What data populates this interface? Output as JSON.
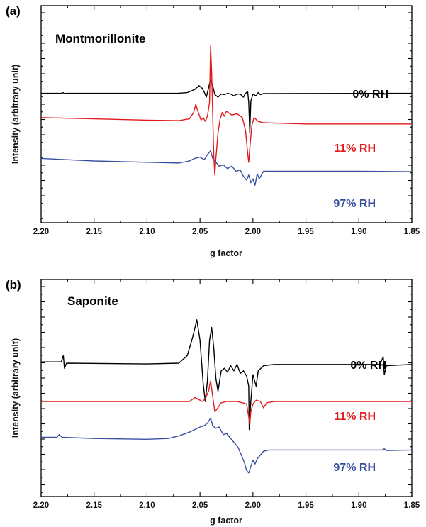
{
  "chart_data": [
    {
      "type": "line",
      "panel_label": "(a)",
      "title": "Montmorillonite",
      "xlabel": "g factor",
      "ylabel": "Intensity (arbitrary unit)",
      "xlim": [
        2.2,
        1.85
      ],
      "x_reversed": true,
      "xticks": [
        "2.20",
        "2.15",
        "2.10",
        "2.05",
        "2.00",
        "1.95",
        "1.90",
        "1.85"
      ],
      "y_tick_labels": false,
      "grid": false,
      "series": [
        {
          "name": "0% RH",
          "color": "#000000",
          "baseline": 0.65,
          "points": [
            [
              2.2,
              0.65
            ],
            [
              2.181,
              0.65
            ],
            [
              2.179,
              0.675
            ],
            [
              2.178,
              0.63
            ],
            [
              2.176,
              0.65
            ],
            [
              2.07,
              0.655
            ],
            [
              2.062,
              0.68
            ],
            [
              2.055,
              0.8
            ],
            [
              2.051,
              0.95
            ],
            [
              2.048,
              0.85
            ],
            [
              2.046,
              0.7
            ],
            [
              2.044,
              0.5
            ],
            [
              2.042,
              0.85
            ],
            [
              2.04,
              1.2
            ],
            [
              2.038,
              0.95
            ],
            [
              2.036,
              0.6
            ],
            [
              2.033,
              0.5
            ],
            [
              2.03,
              0.62
            ],
            [
              2.027,
              0.6
            ],
            [
              2.024,
              0.65
            ],
            [
              2.021,
              0.62
            ],
            [
              2.018,
              0.55
            ],
            [
              2.015,
              0.62
            ],
            [
              2.012,
              0.62
            ],
            [
              2.009,
              0.5
            ],
            [
              2.007,
              0.65
            ],
            [
              2.005,
              0.72
            ],
            [
              2.004,
              0.3
            ],
            [
              2.003,
              -0.9
            ],
            [
              2.002,
              0.35
            ],
            [
              2.0,
              0.62
            ],
            [
              1.997,
              0.55
            ],
            [
              1.995,
              0.68
            ],
            [
              1.993,
              0.6
            ],
            [
              1.99,
              0.64
            ],
            [
              1.88,
              0.65
            ],
            [
              1.877,
              0.67
            ],
            [
              1.876,
              0.62
            ],
            [
              1.874,
              0.65
            ],
            [
              1.85,
              0.65
            ]
          ]
        },
        {
          "name": "11% RH",
          "color": "#e31a1c",
          "baseline": -0.55,
          "points": [
            [
              2.2,
              -0.3
            ],
            [
              2.15,
              -0.35
            ],
            [
              2.1,
              -0.4
            ],
            [
              2.07,
              -0.42
            ],
            [
              2.06,
              -0.35
            ],
            [
              2.056,
              -0.1
            ],
            [
              2.054,
              0.22
            ],
            [
              2.052,
              -0.05
            ],
            [
              2.049,
              -0.4
            ],
            [
              2.047,
              -0.3
            ],
            [
              2.045,
              -0.45
            ],
            [
              2.043,
              -0.25
            ],
            [
              2.041,
              0.3
            ],
            [
              2.04,
              2.5
            ],
            [
              2.039,
              1.5
            ],
            [
              2.038,
              -0.2
            ],
            [
              2.037,
              -1.8
            ],
            [
              2.036,
              -2.55
            ],
            [
              2.035,
              -1.9
            ],
            [
              2.033,
              -0.9
            ],
            [
              2.031,
              -0.35
            ],
            [
              2.029,
              -0.1
            ],
            [
              2.027,
              -0.25
            ],
            [
              2.025,
              -0.05
            ],
            [
              2.02,
              -0.2
            ],
            [
              2.015,
              -0.15
            ],
            [
              2.01,
              -0.3
            ],
            [
              2.007,
              -0.8
            ],
            [
              2.005,
              -1.7
            ],
            [
              2.004,
              -2.05
            ],
            [
              2.003,
              -1.5
            ],
            [
              2.001,
              -0.6
            ],
            [
              1.999,
              -0.3
            ],
            [
              1.995,
              -0.45
            ],
            [
              1.99,
              -0.5
            ],
            [
              1.95,
              -0.55
            ],
            [
              1.9,
              -0.55
            ],
            [
              1.85,
              -0.55
            ]
          ]
        },
        {
          "name": "97% RH",
          "color": "#3b4fa0",
          "baseline": -2.4,
          "points": [
            [
              2.2,
              -1.9
            ],
            [
              2.15,
              -2.0
            ],
            [
              2.1,
              -2.05
            ],
            [
              2.07,
              -2.08
            ],
            [
              2.06,
              -2.0
            ],
            [
              2.055,
              -1.9
            ],
            [
              2.05,
              -1.85
            ],
            [
              2.046,
              -1.95
            ],
            [
              2.043,
              -1.75
            ],
            [
              2.04,
              -1.6
            ],
            [
              2.038,
              -1.9
            ],
            [
              2.035,
              -2.05
            ],
            [
              2.032,
              -2.2
            ],
            [
              2.028,
              -2.15
            ],
            [
              2.024,
              -2.3
            ],
            [
              2.02,
              -2.2
            ],
            [
              2.016,
              -2.4
            ],
            [
              2.012,
              -2.35
            ],
            [
              2.009,
              -2.6
            ],
            [
              2.006,
              -2.75
            ],
            [
              2.004,
              -2.55
            ],
            [
              2.002,
              -2.85
            ],
            [
              2.0,
              -2.7
            ],
            [
              1.998,
              -2.95
            ],
            [
              1.996,
              -2.5
            ],
            [
              1.994,
              -2.7
            ],
            [
              1.99,
              -2.4
            ],
            [
              1.95,
              -2.4
            ],
            [
              1.9,
              -2.4
            ],
            [
              1.85,
              -2.42
            ]
          ]
        }
      ]
    },
    {
      "type": "line",
      "panel_label": "(b)",
      "title": "Saponite",
      "xlabel": "g factor",
      "ylabel": "Intensity (arbitrary unit)",
      "xlim": [
        2.2,
        1.85
      ],
      "x_reversed": true,
      "xticks": [
        "2.20",
        "2.15",
        "2.10",
        "2.05",
        "2.00",
        "1.95",
        "1.90",
        "1.85"
      ],
      "y_tick_labels": false,
      "grid": false,
      "series": [
        {
          "name": "0% RH",
          "color": "#000000",
          "baseline": 0.45,
          "points": [
            [
              2.2,
              0.55
            ],
            [
              2.181,
              0.55
            ],
            [
              2.179,
              0.8
            ],
            [
              2.178,
              0.3
            ],
            [
              2.176,
              0.5
            ],
            [
              2.1,
              0.47
            ],
            [
              2.07,
              0.5
            ],
            [
              2.062,
              0.8
            ],
            [
              2.057,
              1.5
            ],
            [
              2.053,
              2.2
            ],
            [
              2.05,
              1.4
            ],
            [
              2.047,
              -0.3
            ],
            [
              2.045,
              -1.0
            ],
            [
              2.043,
              -0.2
            ],
            [
              2.041,
              1.4
            ],
            [
              2.039,
              1.9
            ],
            [
              2.037,
              1.1
            ],
            [
              2.035,
              -0.1
            ],
            [
              2.033,
              -0.6
            ],
            [
              2.03,
              0.2
            ],
            [
              2.027,
              0.3
            ],
            [
              2.024,
              0.15
            ],
            [
              2.021,
              0.4
            ],
            [
              2.018,
              0.2
            ],
            [
              2.015,
              0.45
            ],
            [
              2.012,
              0.1
            ],
            [
              2.009,
              0.2
            ],
            [
              2.006,
              0.0
            ],
            [
              2.004,
              -0.4
            ],
            [
              2.0035,
              -2.1
            ],
            [
              2.003,
              -1.6
            ],
            [
              2.002,
              -1.0
            ],
            [
              2.0,
              0.05
            ],
            [
              1.997,
              -0.4
            ],
            [
              1.995,
              0.2
            ],
            [
              1.99,
              0.4
            ],
            [
              1.98,
              0.45
            ],
            [
              1.95,
              0.45
            ],
            [
              1.9,
              0.45
            ],
            [
              1.88,
              0.45
            ],
            [
              1.877,
              0.75
            ],
            [
              1.876,
              0.05
            ],
            [
              1.874,
              0.4
            ],
            [
              1.85,
              0.45
            ]
          ]
        },
        {
          "name": "11% RH",
          "color": "#e31a1c",
          "baseline": -1.0,
          "points": [
            [
              2.2,
              -1.0
            ],
            [
              2.1,
              -1.0
            ],
            [
              2.06,
              -1.0
            ],
            [
              2.055,
              -0.85
            ],
            [
              2.052,
              -0.9
            ],
            [
              2.048,
              -1.0
            ],
            [
              2.045,
              -0.9
            ],
            [
              2.042,
              -0.6
            ],
            [
              2.04,
              -0.2
            ],
            [
              2.038,
              -0.8
            ],
            [
              2.036,
              -1.4
            ],
            [
              2.034,
              -1.3
            ],
            [
              2.03,
              -1.05
            ],
            [
              2.025,
              -1.0
            ],
            [
              2.02,
              -1.0
            ],
            [
              2.015,
              -1.0
            ],
            [
              2.01,
              -1.05
            ],
            [
              2.006,
              -1.1
            ],
            [
              2.004,
              -1.6
            ],
            [
              2.003,
              -1.9
            ],
            [
              2.002,
              -1.4
            ],
            [
              2.0,
              -1.1
            ],
            [
              1.997,
              -0.95
            ],
            [
              1.993,
              -1.0
            ],
            [
              1.99,
              -1.25
            ],
            [
              1.987,
              -1.05
            ],
            [
              1.98,
              -1.0
            ],
            [
              1.9,
              -1.0
            ],
            [
              1.85,
              -1.0
            ]
          ]
        },
        {
          "name": "97% RH",
          "color": "#3b4fa0",
          "baseline": -2.9,
          "points": [
            [
              2.2,
              -2.4
            ],
            [
              2.185,
              -2.4
            ],
            [
              2.183,
              -2.3
            ],
            [
              2.18,
              -2.4
            ],
            [
              2.15,
              -2.45
            ],
            [
              2.1,
              -2.48
            ],
            [
              2.08,
              -2.45
            ],
            [
              2.07,
              -2.35
            ],
            [
              2.06,
              -2.2
            ],
            [
              2.05,
              -2.0
            ],
            [
              2.046,
              -1.95
            ],
            [
              2.043,
              -1.85
            ],
            [
              2.04,
              -1.65
            ],
            [
              2.038,
              -1.95
            ],
            [
              2.035,
              -2.05
            ],
            [
              2.032,
              -2.0
            ],
            [
              2.028,
              -2.3
            ],
            [
              2.025,
              -2.25
            ],
            [
              2.021,
              -2.45
            ],
            [
              2.018,
              -2.6
            ],
            [
              2.014,
              -2.8
            ],
            [
              2.011,
              -3.1
            ],
            [
              2.008,
              -3.4
            ],
            [
              2.006,
              -3.7
            ],
            [
              2.004,
              -3.8
            ],
            [
              2.002,
              -3.55
            ],
            [
              2.0,
              -3.3
            ],
            [
              1.998,
              -3.45
            ],
            [
              1.996,
              -3.25
            ],
            [
              1.993,
              -3.1
            ],
            [
              1.99,
              -2.95
            ],
            [
              1.985,
              -2.9
            ],
            [
              1.95,
              -2.9
            ],
            [
              1.9,
              -2.9
            ],
            [
              1.878,
              -2.9
            ],
            [
              1.876,
              -2.85
            ],
            [
              1.874,
              -2.92
            ],
            [
              1.85,
              -2.9
            ]
          ]
        }
      ]
    }
  ]
}
